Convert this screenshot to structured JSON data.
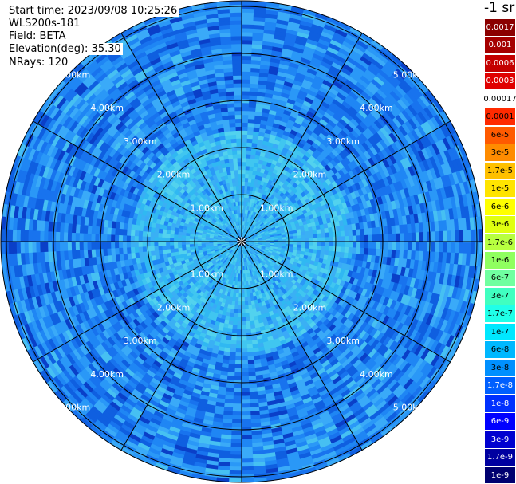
{
  "header": {
    "start_time": "Start time: 2023/09/08 10:25:26",
    "device": "WLS200s-181",
    "field": "Field: BETA",
    "elevation": "Elevation(deg): 35.30",
    "nrays": "NRays: 120"
  },
  "range_rings": {
    "labels": [
      "1.00km",
      "2.00km",
      "3.00km",
      "4.00km",
      "5.00km"
    ],
    "values_km": [
      1,
      2,
      3,
      4,
      5
    ]
  },
  "spokes_count": 12,
  "colorbar": {
    "title": "-1 sr",
    "levels": [
      {
        "label": "0.0017",
        "color": "#8b0000",
        "text": "#ffffff"
      },
      {
        "label": "0.001",
        "color": "#a50000",
        "text": "#ffffff"
      },
      {
        "label": "0.0006",
        "color": "#c40000",
        "text": "#ffffff"
      },
      {
        "label": "0.0003",
        "color": "#e00000",
        "text": "#ffffff"
      },
      {
        "label": "0.00017",
        "color": "#ffffff",
        "text": "#000000"
      },
      {
        "label": "0.0001",
        "color": "#ff2a00",
        "text": "#000000"
      },
      {
        "label": "6e-5",
        "color": "#ff5a00",
        "text": "#000000"
      },
      {
        "label": "3e-5",
        "color": "#ff8c00",
        "text": "#000000"
      },
      {
        "label": "1.7e-5",
        "color": "#ffc000",
        "text": "#000000"
      },
      {
        "label": "1e-5",
        "color": "#ffe400",
        "text": "#000000"
      },
      {
        "label": "6e-6",
        "color": "#ffff00",
        "text": "#000000"
      },
      {
        "label": "3e-6",
        "color": "#e0ff10",
        "text": "#000000"
      },
      {
        "label": "1.7e-6",
        "color": "#b8ff40",
        "text": "#000000"
      },
      {
        "label": "1e-6",
        "color": "#90ff60",
        "text": "#000000"
      },
      {
        "label": "6e-7",
        "color": "#70ffa0",
        "text": "#000000"
      },
      {
        "label": "3e-7",
        "color": "#40ffc0",
        "text": "#000000"
      },
      {
        "label": "1.7e-7",
        "color": "#20ffe8",
        "text": "#000000"
      },
      {
        "label": "1e-7",
        "color": "#00e8ff",
        "text": "#000000"
      },
      {
        "label": "6e-8",
        "color": "#00b8ff",
        "text": "#000000"
      },
      {
        "label": "3e-8",
        "color": "#0090ff",
        "text": "#000000"
      },
      {
        "label": "1.7e-8",
        "color": "#0060ff",
        "text": "#ffffff"
      },
      {
        "label": "1e-8",
        "color": "#0030ff",
        "text": "#ffffff"
      },
      {
        "label": "6e-9",
        "color": "#0000ff",
        "text": "#ffffff"
      },
      {
        "label": "3e-9",
        "color": "#0000d0",
        "text": "#ffffff"
      },
      {
        "label": "1.7e-9",
        "color": "#0000a0",
        "text": "#ffffff"
      },
      {
        "label": "1e-9",
        "color": "#000070",
        "text": "#ffffff"
      }
    ]
  }
}
